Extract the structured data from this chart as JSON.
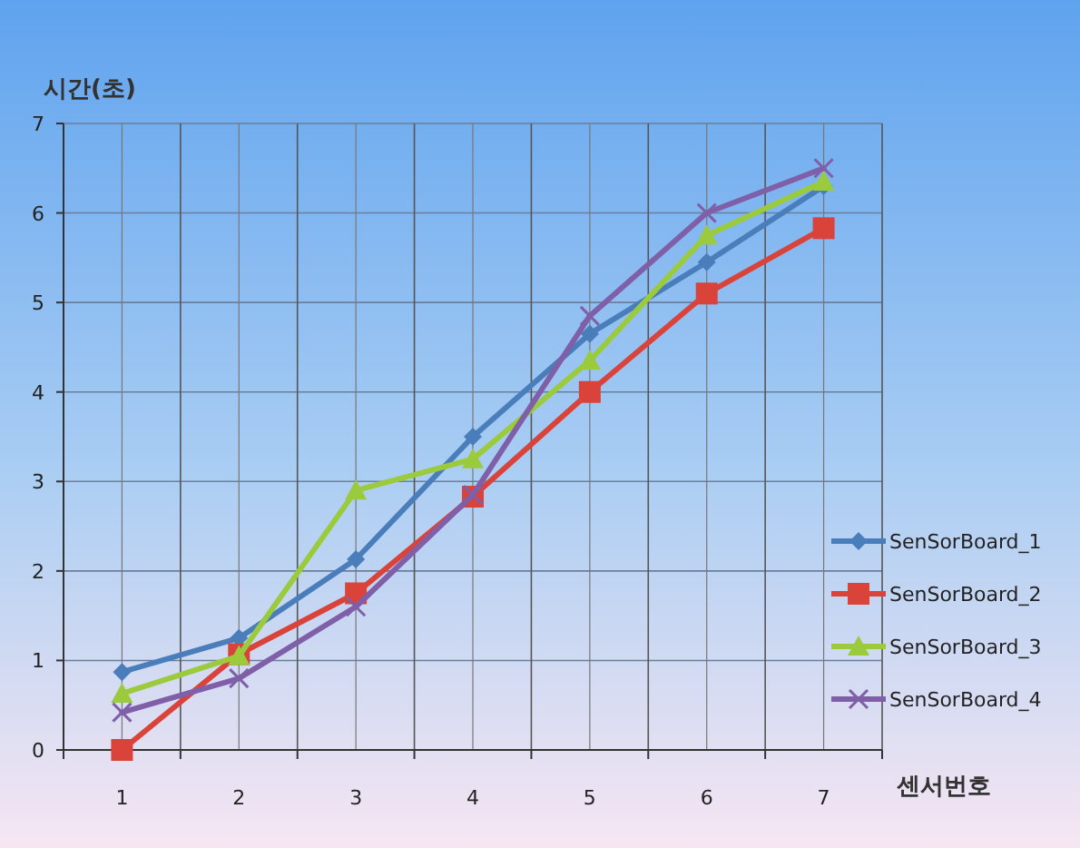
{
  "chart_data": {
    "type": "line",
    "ylabel": "시간(초)",
    "xlabel": "센서번호",
    "categories": [
      "1",
      "2",
      "3",
      "4",
      "5",
      "6",
      "7"
    ],
    "ylim": [
      0,
      7
    ],
    "yticks": [
      0,
      1,
      2,
      3,
      4,
      5,
      6,
      7
    ],
    "grid": true,
    "legend": "right",
    "series": [
      {
        "name": "SenSorBoard_1",
        "color": "#4a7ebb",
        "marker": "diamond",
        "values": [
          0.87,
          1.25,
          2.13,
          3.5,
          4.65,
          5.45,
          6.3
        ]
      },
      {
        "name": "SenSorBoard_2",
        "color": "#d9433a",
        "marker": "square",
        "values": [
          0,
          1.07,
          1.75,
          2.83,
          4.0,
          5.1,
          5.83
        ]
      },
      {
        "name": "SenSorBoard_3",
        "color": "#9bcb3c",
        "marker": "triangle",
        "values": [
          0.63,
          1.05,
          2.9,
          3.25,
          4.35,
          5.75,
          6.35
        ]
      },
      {
        "name": "SenSorBoard_4",
        "color": "#7f5fa8",
        "marker": "cross",
        "values": [
          0.42,
          0.8,
          1.6,
          2.85,
          4.85,
          6.0,
          6.5
        ]
      }
    ]
  }
}
